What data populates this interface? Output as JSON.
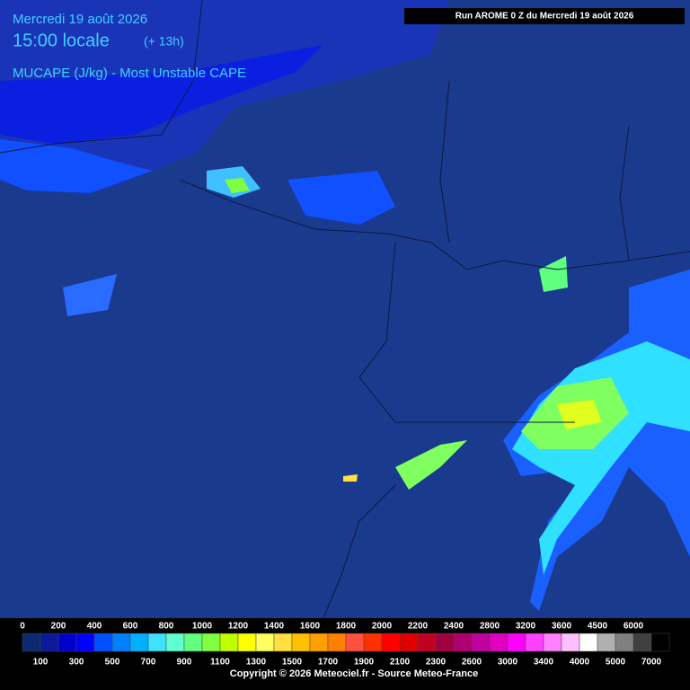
{
  "header": {
    "date": "Mercredi 19 août 2026",
    "time": "15:00 locale",
    "offset": "(+ 13h)",
    "product": "MUCAPE (J/kg) - Most Unstable CAPE",
    "run": "Run AROME 0 Z du Mercredi 19 août 2026"
  },
  "legend": {
    "labels_top": [
      0,
      200,
      400,
      600,
      800,
      1000,
      1200,
      1400,
      1600,
      1800,
      2000,
      2200,
      2400,
      2800,
      3200,
      3600,
      4500,
      6000
    ],
    "labels_bottom": [
      100,
      300,
      500,
      700,
      900,
      1100,
      1300,
      1500,
      1700,
      1900,
      2100,
      2300,
      2600,
      3000,
      3400,
      4000,
      5000,
      7000
    ],
    "colors": [
      "#0b2a70",
      "#0a1a9a",
      "#0000cc",
      "#0000ff",
      "#0050ff",
      "#0080ff",
      "#00b0ff",
      "#40e0ff",
      "#60ffd0",
      "#60ff80",
      "#80ff40",
      "#c0ff00",
      "#ffff00",
      "#ffff60",
      "#ffe040",
      "#ffc000",
      "#ffa000",
      "#ff8000",
      "#ff5040",
      "#ff3000",
      "#ff0000",
      "#e00000",
      "#c00020",
      "#a00040",
      "#b00070",
      "#c000a0",
      "#e000c0",
      "#ff00ff",
      "#ff40ff",
      "#ff80ff",
      "#ffc0ff",
      "#ffffff",
      "#b0b0b0",
      "#808080",
      "#404040",
      "#000000"
    ]
  },
  "footer": {
    "copyright": "Copyright © 2026 Meteociel.fr - Source Meteo-France"
  }
}
